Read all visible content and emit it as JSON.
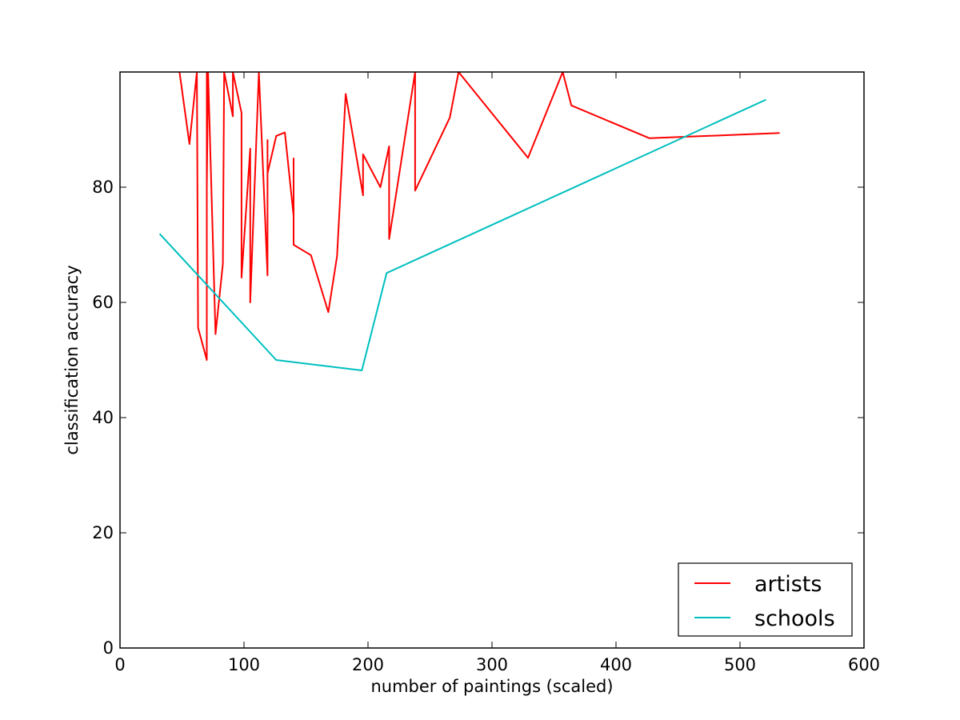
{
  "chart_data": {
    "type": "line",
    "title": "",
    "xlabel": "number of paintings (scaled)",
    "ylabel": "classification accuracy",
    "xlim": [
      0,
      600
    ],
    "ylim": [
      0,
      100
    ],
    "xticks": [
      0,
      100,
      200,
      300,
      400,
      500,
      600
    ],
    "yticks": [
      0,
      20,
      40,
      60,
      80
    ],
    "grid": false,
    "legend_position": "lower-right",
    "series": [
      {
        "name": "artists",
        "color": "#ff0000",
        "points": [
          [
            48,
            100
          ],
          [
            56,
            87.5
          ],
          [
            62,
            100
          ],
          [
            63,
            55.6
          ],
          [
            70,
            50
          ],
          [
            70,
            100
          ],
          [
            70,
            80
          ],
          [
            71,
            100
          ],
          [
            77,
            54.5
          ],
          [
            83,
            66.7
          ],
          [
            84,
            100
          ],
          [
            91,
            92.3
          ],
          [
            91,
            100
          ],
          [
            98,
            92.9
          ],
          [
            98,
            64.3
          ],
          [
            105,
            86.7
          ],
          [
            105,
            60
          ],
          [
            112,
            100
          ],
          [
            119,
            64.7
          ],
          [
            119,
            88.2
          ],
          [
            119,
            82.4
          ],
          [
            126,
            88.9
          ],
          [
            133,
            89.5
          ],
          [
            140,
            75
          ],
          [
            140,
            85
          ],
          [
            140,
            70
          ],
          [
            154,
            68.2
          ],
          [
            168,
            58.3
          ],
          [
            175,
            68
          ],
          [
            182,
            96.2
          ],
          [
            196,
            78.6
          ],
          [
            196,
            85.7
          ],
          [
            210,
            80
          ],
          [
            217,
            87.1
          ],
          [
            217,
            71
          ],
          [
            238,
            100
          ],
          [
            238,
            79.4
          ],
          [
            266,
            92.1
          ],
          [
            273,
            100
          ],
          [
            329,
            85.1
          ],
          [
            357,
            100
          ],
          [
            364,
            94.2
          ],
          [
            427,
            88.5
          ],
          [
            532,
            89.4
          ]
        ]
      },
      {
        "name": "schools",
        "color": "#00bfbf",
        "points": [
          [
            32,
            71.9
          ],
          [
            126,
            50
          ],
          [
            195,
            48.2
          ],
          [
            215,
            65.1
          ],
          [
            521,
            95.2
          ]
        ]
      }
    ]
  }
}
